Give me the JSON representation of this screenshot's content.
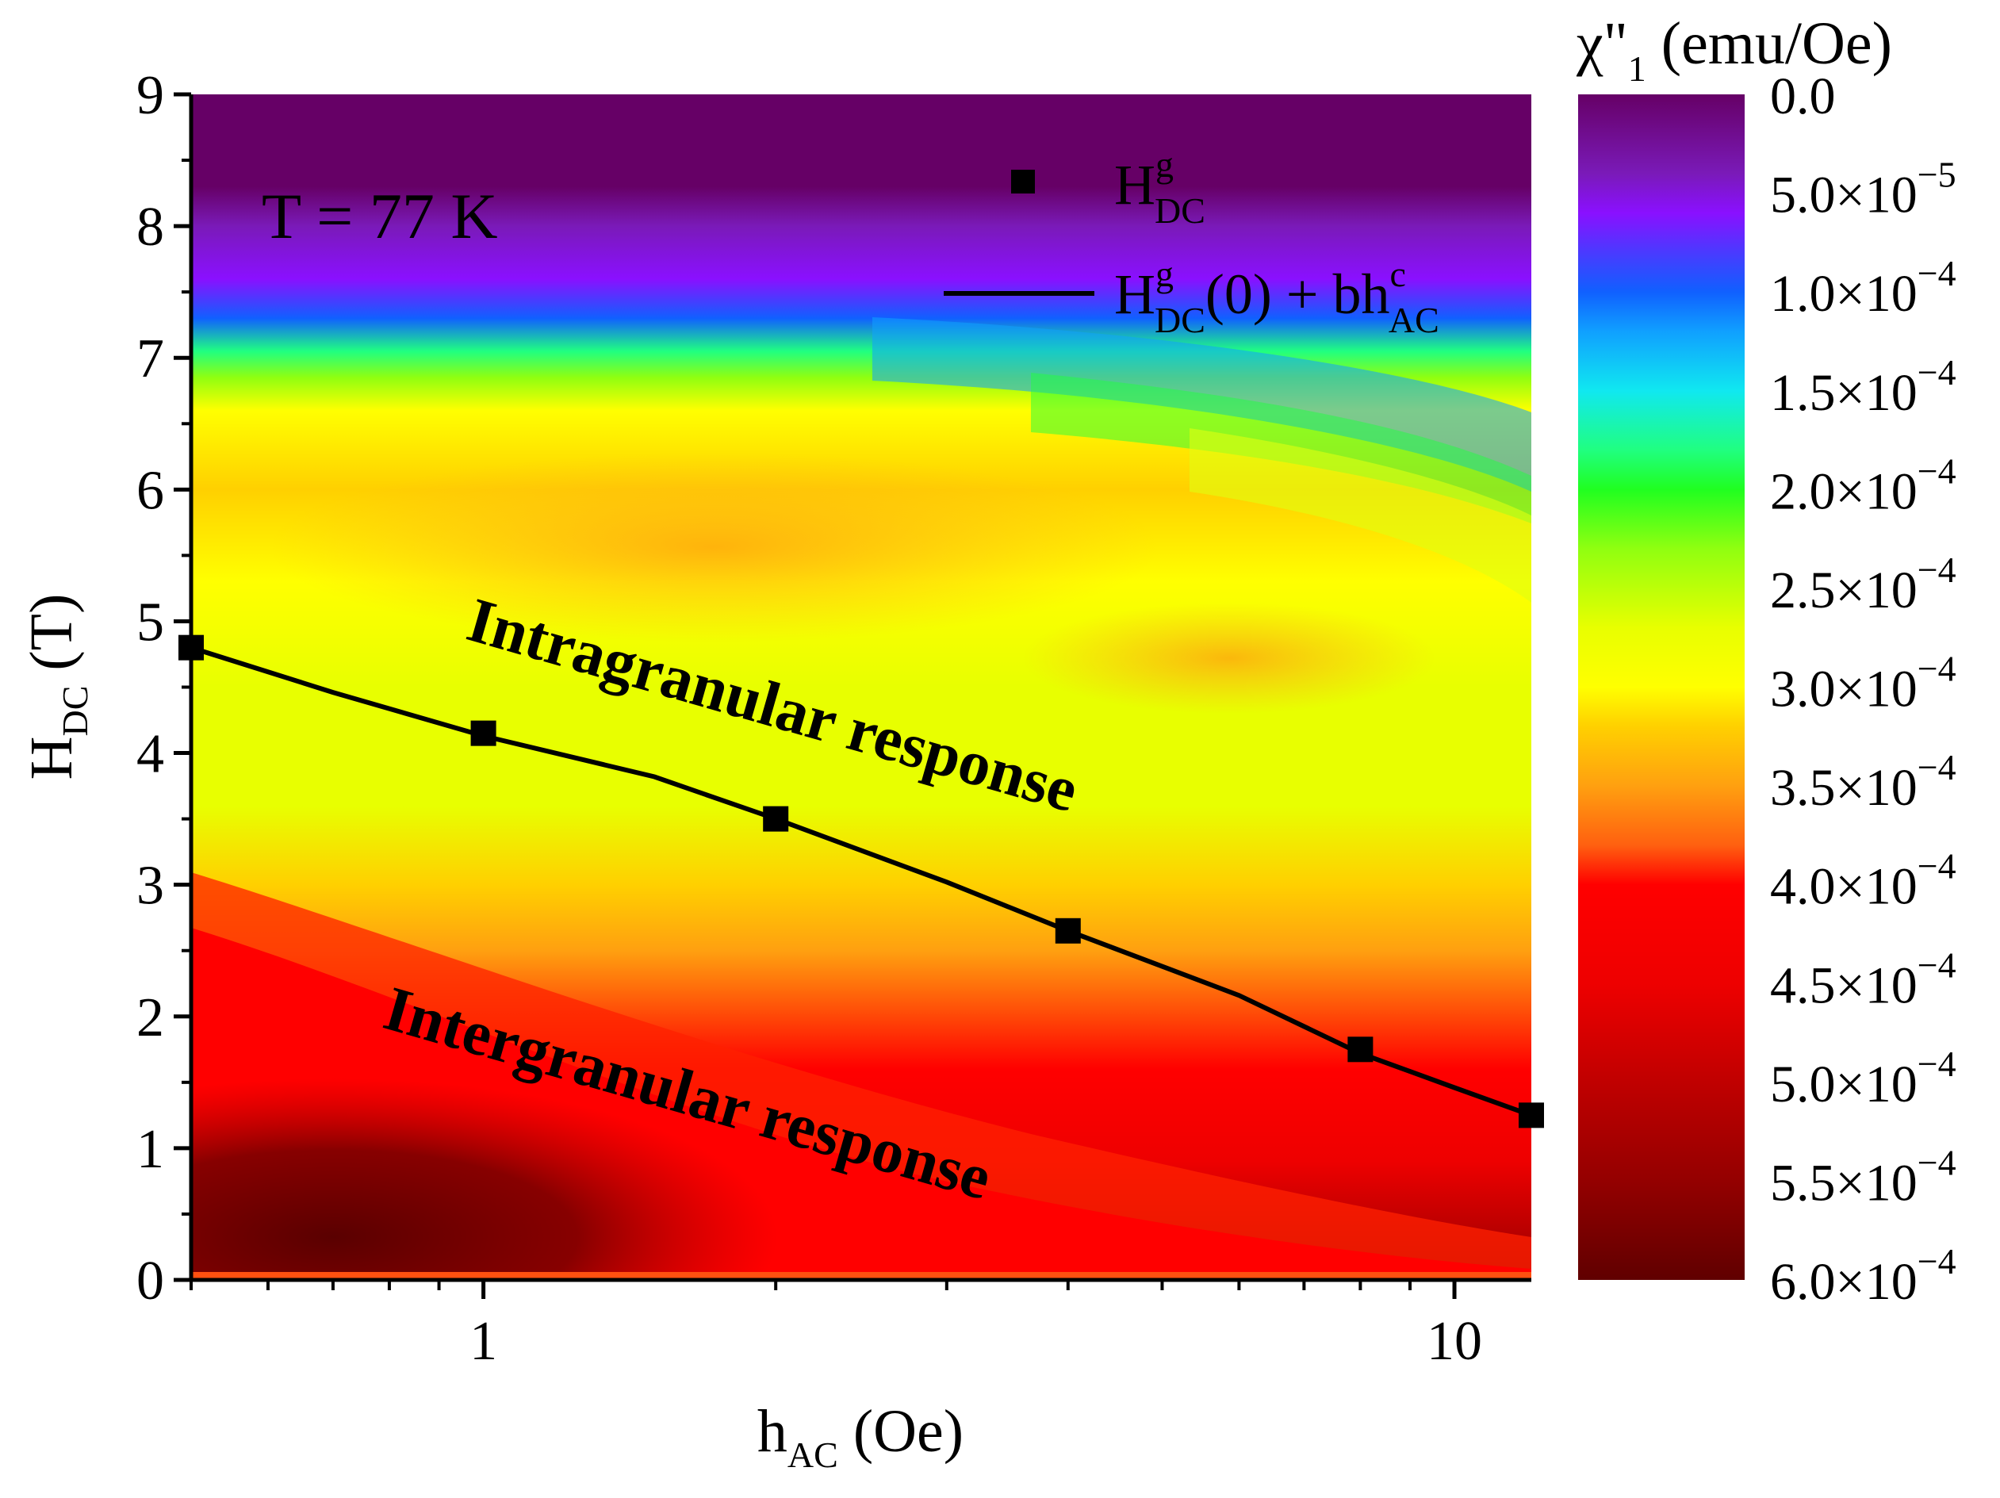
{
  "chart_data": {
    "type": "heatmap",
    "subtype": "contour",
    "x": {
      "label_main": "h",
      "label_sub": "AC",
      "label_unit": " (Oe)",
      "scale": "log",
      "range": [
        0.5,
        12
      ],
      "ticks": [
        {
          "value": 1,
          "label": "1"
        },
        {
          "value": 10,
          "label": "10"
        }
      ]
    },
    "y": {
      "label_main": "H",
      "label_sub": "DC",
      "label_unit": " (T)",
      "range": [
        0,
        9
      ],
      "ticks": [
        {
          "value": 0,
          "label": "0"
        },
        {
          "value": 1,
          "label": "1"
        },
        {
          "value": 2,
          "label": "2"
        },
        {
          "value": 3,
          "label": "3"
        },
        {
          "value": 4,
          "label": "4"
        },
        {
          "value": 5,
          "label": "5"
        },
        {
          "value": 6,
          "label": "6"
        },
        {
          "value": 7,
          "label": "7"
        },
        {
          "value": 8,
          "label": "8"
        },
        {
          "value": 9,
          "label": "9"
        }
      ]
    },
    "colorbar": {
      "title_main": "χ\"",
      "title_sub": "1",
      "title_unit": " (emu/Oe)",
      "range": [
        0.0,
        0.0006
      ],
      "reversed": true,
      "ticks": [
        {
          "value": 0.0,
          "mant": "0.0",
          "exp": ""
        },
        {
          "value": 5e-05,
          "mant": "5.0×10",
          "exp": "−5"
        },
        {
          "value": 0.0001,
          "mant": "1.0×10",
          "exp": "−4"
        },
        {
          "value": 0.00015,
          "mant": "1.5×10",
          "exp": "−4"
        },
        {
          "value": 0.0002,
          "mant": "2.0×10",
          "exp": "−4"
        },
        {
          "value": 0.00025,
          "mant": "2.5×10",
          "exp": "−4"
        },
        {
          "value": 0.0003,
          "mant": "3.0×10",
          "exp": "−4"
        },
        {
          "value": 0.00035,
          "mant": "3.5×10",
          "exp": "−4"
        },
        {
          "value": 0.0004,
          "mant": "4.0×10",
          "exp": "−4"
        },
        {
          "value": 0.00045,
          "mant": "4.5×10",
          "exp": "−4"
        },
        {
          "value": 0.0005,
          "mant": "5.0×10",
          "exp": "−4"
        },
        {
          "value": 0.00055,
          "mant": "5.5×10",
          "exp": "−4"
        },
        {
          "value": 0.0006,
          "mant": "6.0×10",
          "exp": "−4"
        }
      ],
      "stops": [
        {
          "v": 0.0,
          "color": "#660066"
        },
        {
          "v": 4e-05,
          "color": "#7a1ab8"
        },
        {
          "v": 6e-05,
          "color": "#8a10ff"
        },
        {
          "v": 8e-05,
          "color": "#4a3aff"
        },
        {
          "v": 0.0001,
          "color": "#1060ff"
        },
        {
          "v": 0.00012,
          "color": "#10a0ff"
        },
        {
          "v": 0.00015,
          "color": "#10e8f0"
        },
        {
          "v": 0.00018,
          "color": "#20ff80"
        },
        {
          "v": 0.0002,
          "color": "#20ff20"
        },
        {
          "v": 0.00023,
          "color": "#90ff10"
        },
        {
          "v": 0.00027,
          "color": "#e8ff00"
        },
        {
          "v": 0.0003,
          "color": "#ffff00"
        },
        {
          "v": 0.00032,
          "color": "#ffd000"
        },
        {
          "v": 0.00035,
          "color": "#ffa010"
        },
        {
          "v": 0.00038,
          "color": "#ff6010"
        },
        {
          "v": 0.0004,
          "color": "#ff0000"
        },
        {
          "v": 0.00045,
          "color": "#ee0000"
        },
        {
          "v": 0.0005,
          "color": "#c00000"
        },
        {
          "v": 0.00055,
          "color": "#940000"
        },
        {
          "v": 0.0006,
          "color": "#600000"
        }
      ]
    },
    "series": [
      {
        "name": "H^g_DC",
        "type": "scatter",
        "marker": "square",
        "points": [
          {
            "x": 0.5,
            "y": 4.8
          },
          {
            "x": 1,
            "y": 4.15
          },
          {
            "x": 2,
            "y": 3.5
          },
          {
            "x": 4,
            "y": 2.65
          },
          {
            "x": 8,
            "y": 1.75
          },
          {
            "x": 12,
            "y": 1.25
          }
        ]
      },
      {
        "name": "H^g_DC(0) + b h^c_AC",
        "type": "line",
        "points": [
          {
            "x": 0.5,
            "y": 4.8
          },
          {
            "x": 0.7,
            "y": 4.46
          },
          {
            "x": 1,
            "y": 4.13
          },
          {
            "x": 1.5,
            "y": 3.82
          },
          {
            "x": 2,
            "y": 3.5
          },
          {
            "x": 3,
            "y": 3.02
          },
          {
            "x": 4,
            "y": 2.65
          },
          {
            "x": 6,
            "y": 2.16
          },
          {
            "x": 8,
            "y": 1.72
          },
          {
            "x": 10,
            "y": 1.46
          },
          {
            "x": 12,
            "y": 1.25
          }
        ]
      }
    ],
    "legend": {
      "placement": "top-right",
      "scatter_entry": {
        "main": "H",
        "sup": "g",
        "sub": "DC"
      },
      "line_entry": {
        "h1": "H",
        "sup1": "g",
        "sub1": "DC",
        "mid": "(0) + bh",
        "sup2": "c",
        "sub2": "AC"
      }
    },
    "annotations": {
      "temperature": "T = 77 K",
      "upper_region": "Intragranular response",
      "lower_region": "Intergranular response"
    }
  }
}
